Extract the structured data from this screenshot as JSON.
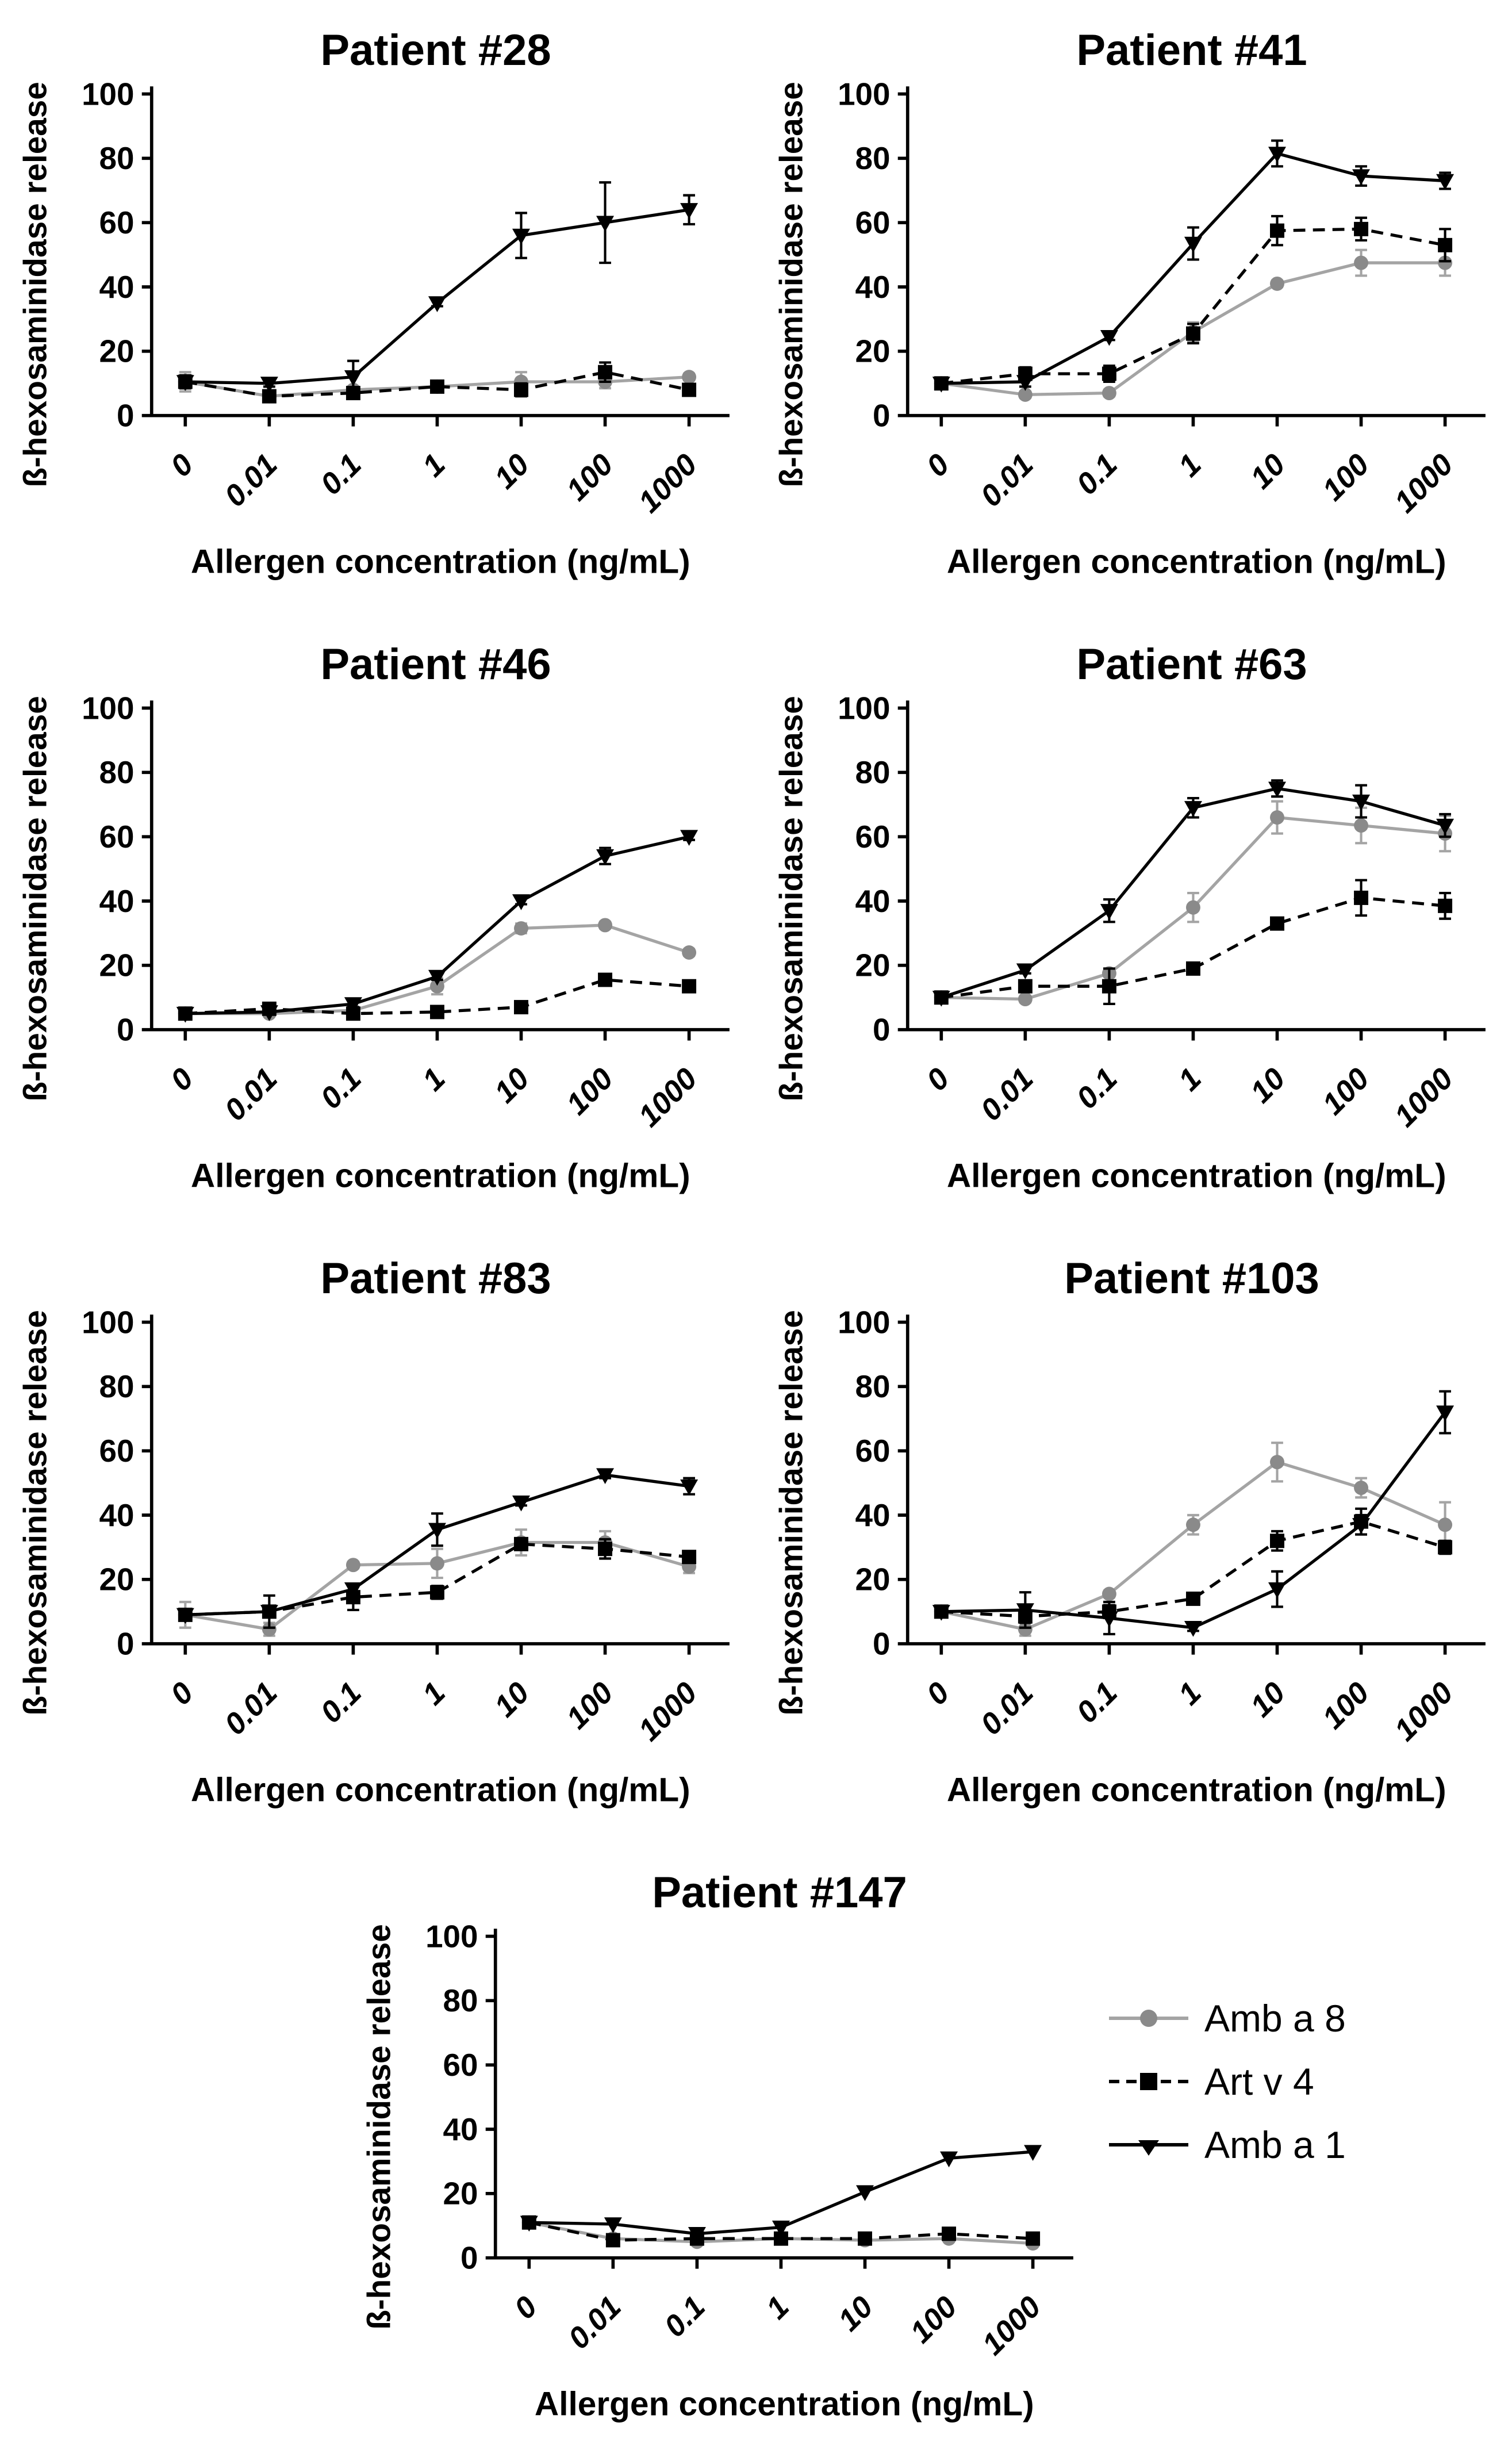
{
  "legend": {
    "items": [
      {
        "label": "Amb a 8",
        "style": "amb_a_8"
      },
      {
        "label": "Art v 4",
        "style": "art_v_4"
      },
      {
        "label": "Amb a 1",
        "style": "amb_a_1"
      }
    ]
  },
  "series_styles": {
    "amb_a_8": {
      "marker": "circle",
      "marker_color": "#8a8a8a",
      "line_color": "#a4a4a4",
      "dash": "none"
    },
    "art_v_4": {
      "marker": "square",
      "marker_color": "#000000",
      "line_color": "#000000",
      "dash": "11,7"
    },
    "amb_a_1": {
      "marker": "triangle-down",
      "marker_color": "#000000",
      "line_color": "#000000",
      "dash": "none"
    }
  },
  "chart_data": [
    {
      "type": "line",
      "title": "Patient #28",
      "xlabel": "Allergen concentration (ng/mL)",
      "ylabel": "ß-hexosaminidase release [%]",
      "categories": [
        "0",
        "0.01",
        "0.1",
        "1",
        "10",
        "100",
        "1000"
      ],
      "ylim": [
        0,
        100
      ],
      "yticks": [
        0,
        20,
        40,
        60,
        80,
        100
      ],
      "series": [
        {
          "name": "Amb a 8",
          "style": "amb_a_8",
          "values": [
            10.5,
            6,
            8,
            9,
            10.5,
            10.5,
            12
          ],
          "errors": [
            3,
            1,
            1,
            1,
            3,
            2,
            1
          ]
        },
        {
          "name": "Art v 4",
          "style": "art_v_4",
          "values": [
            10.5,
            6,
            7,
            9,
            8,
            13.5,
            8
          ],
          "errors": [
            2,
            1,
            1,
            1,
            2,
            3,
            1
          ]
        },
        {
          "name": "Amb a 1",
          "style": "amb_a_1",
          "values": [
            10.5,
            10,
            12,
            35,
            56,
            60,
            64
          ],
          "errors": [
            2,
            1,
            5,
            1,
            7,
            12.5,
            4.5
          ]
        }
      ]
    },
    {
      "type": "line",
      "title": "Patient #41",
      "xlabel": "Allergen concentration (ng/mL)",
      "ylabel": "ß-hexosaminidase release [%]",
      "categories": [
        "0",
        "0.01",
        "0.1",
        "1",
        "10",
        "100",
        "1000"
      ],
      "ylim": [
        0,
        100
      ],
      "yticks": [
        0,
        20,
        40,
        60,
        80,
        100
      ],
      "series": [
        {
          "name": "Amb a 8",
          "style": "amb_a_8",
          "values": [
            10,
            6.5,
            7,
            26,
            41,
            47.5,
            47.5
          ],
          "errors": [
            1.5,
            1,
            1,
            3,
            1,
            4,
            4
          ]
        },
        {
          "name": "Art v 4",
          "style": "art_v_4",
          "values": [
            10,
            13,
            13,
            25.5,
            57.5,
            58,
            53
          ],
          "errors": [
            1,
            2,
            2.5,
            3,
            4.5,
            3.5,
            5
          ]
        },
        {
          "name": "Amb a 1",
          "style": "amb_a_1",
          "values": [
            10,
            10.5,
            24.5,
            53.5,
            81.5,
            74.5,
            73
          ],
          "errors": [
            1,
            1.5,
            1,
            5,
            4,
            3,
            2.5
          ]
        }
      ]
    },
    {
      "type": "line",
      "title": "Patient #46",
      "xlabel": "Allergen concentration (ng/mL)",
      "ylabel": "ß-hexosaminidase release [%]",
      "categories": [
        "0",
        "0.01",
        "0.1",
        "1",
        "10",
        "100",
        "1000"
      ],
      "ylim": [
        0,
        100
      ],
      "yticks": [
        0,
        20,
        40,
        60,
        80,
        100
      ],
      "series": [
        {
          "name": "Amb a 8",
          "style": "amb_a_8",
          "values": [
            5,
            5,
            6,
            13.5,
            31.5,
            32.5,
            24
          ],
          "errors": [
            0.5,
            0.5,
            1,
            2.5,
            1.5,
            1,
            1
          ]
        },
        {
          "name": "Art v 4",
          "style": "art_v_4",
          "values": [
            5,
            6.5,
            5,
            5.5,
            7,
            15.5,
            13.5
          ],
          "errors": [
            0.5,
            0.5,
            1,
            0.5,
            0.5,
            1,
            1
          ]
        },
        {
          "name": "Amb a 1",
          "style": "amb_a_1",
          "values": [
            5,
            5.5,
            8,
            16.5,
            40,
            54,
            60
          ],
          "errors": [
            0.5,
            0.5,
            1,
            1,
            1,
            2.5,
            1
          ]
        }
      ]
    },
    {
      "type": "line",
      "title": "Patient #63",
      "xlabel": "Allergen concentration (ng/mL)",
      "ylabel": "ß-hexosaminidase release [%]",
      "categories": [
        "0",
        "0.01",
        "0.1",
        "1",
        "10",
        "100",
        "1000"
      ],
      "ylim": [
        0,
        100
      ],
      "yticks": [
        0,
        20,
        40,
        60,
        80,
        100
      ],
      "series": [
        {
          "name": "Amb a 8",
          "style": "amb_a_8",
          "values": [
            10,
            9.5,
            17.5,
            38,
            66,
            63.5,
            61
          ],
          "errors": [
            1,
            1,
            1,
            4.5,
            5,
            5.5,
            5.5
          ]
        },
        {
          "name": "Art v 4",
          "style": "art_v_4",
          "values": [
            10,
            13.5,
            13.5,
            19,
            33,
            41,
            38.5
          ],
          "errors": [
            1.5,
            1.5,
            5.5,
            1,
            1,
            5.5,
            4
          ]
        },
        {
          "name": "Amb a 1",
          "style": "amb_a_1",
          "values": [
            10,
            18.5,
            37,
            69,
            75,
            71,
            63.5
          ],
          "errors": [
            1,
            1,
            3.5,
            3,
            2.5,
            5,
            3.5
          ]
        }
      ]
    },
    {
      "type": "line",
      "title": "Patient #83",
      "xlabel": "Allergen concentration (ng/mL)",
      "ylabel": "ß-hexosaminidase release [%]",
      "categories": [
        "0",
        "0.01",
        "0.1",
        "1",
        "10",
        "100",
        "1000"
      ],
      "ylim": [
        0,
        100
      ],
      "yticks": [
        0,
        20,
        40,
        60,
        80,
        100
      ],
      "series": [
        {
          "name": "Amb a 8",
          "style": "amb_a_8",
          "values": [
            9,
            4.5,
            24.5,
            25,
            31.5,
            31.5,
            24
          ],
          "errors": [
            4,
            2,
            1,
            4.5,
            4,
            3.5,
            2
          ]
        },
        {
          "name": "Art v 4",
          "style": "art_v_4",
          "values": [
            9,
            10,
            14.5,
            16,
            31,
            29.5,
            27
          ],
          "errors": [
            1,
            5,
            4,
            2,
            1,
            3,
            1
          ]
        },
        {
          "name": "Amb a 1",
          "style": "amb_a_1",
          "values": [
            9,
            10,
            17,
            35.5,
            44,
            52.5,
            49
          ],
          "errors": [
            1,
            1,
            1.5,
            5,
            1,
            1,
            2.5
          ]
        }
      ]
    },
    {
      "type": "line",
      "title": "Patient #103",
      "xlabel": "Allergen concentration (ng/mL)",
      "ylabel": "ß-hexosaminidase release [%]",
      "categories": [
        "0",
        "0.01",
        "0.1",
        "1",
        "10",
        "100",
        "1000"
      ],
      "ylim": [
        0,
        100
      ],
      "yticks": [
        0,
        20,
        40,
        60,
        80,
        100
      ],
      "series": [
        {
          "name": "Amb a 8",
          "style": "amb_a_8",
          "values": [
            10,
            4.5,
            15.5,
            37,
            56.5,
            48.5,
            37
          ],
          "errors": [
            1,
            2,
            1,
            3,
            6,
            3,
            7
          ]
        },
        {
          "name": "Art v 4",
          "style": "art_v_4",
          "values": [
            10,
            8.5,
            10,
            14,
            32,
            38,
            30
          ],
          "errors": [
            1,
            2,
            2,
            1,
            3,
            4,
            2
          ]
        },
        {
          "name": "Amb a 1",
          "style": "amb_a_1",
          "values": [
            10,
            10.5,
            8,
            5,
            17,
            37,
            72
          ],
          "errors": [
            1,
            5.5,
            5,
            1,
            5.5,
            3,
            6.5
          ]
        }
      ]
    },
    {
      "type": "line",
      "title": "Patient #147",
      "xlabel": "Allergen concentration (ng/mL)",
      "ylabel": "ß-hexosaminidase release [%]",
      "categories": [
        "0",
        "0.01",
        "0.1",
        "1",
        "10",
        "100",
        "1000"
      ],
      "ylim": [
        0,
        100
      ],
      "yticks": [
        0,
        20,
        40,
        60,
        80,
        100
      ],
      "series": [
        {
          "name": "Amb a 8",
          "style": "amb_a_8",
          "values": [
            11,
            6,
            5,
            6,
            5.5,
            6,
            4.5
          ],
          "errors": [
            1,
            0.5,
            0.5,
            1,
            0.5,
            0.5,
            0.5
          ]
        },
        {
          "name": "Art v 4",
          "style": "art_v_4",
          "values": [
            11,
            5.5,
            6,
            6,
            6,
            7.5,
            6
          ],
          "errors": [
            0.5,
            0.5,
            0.5,
            0.5,
            0.5,
            0.5,
            0.5
          ]
        },
        {
          "name": "Amb a 1",
          "style": "amb_a_1",
          "values": [
            11,
            10.5,
            7.5,
            9.5,
            20.5,
            31,
            33
          ],
          "errors": [
            0.5,
            0.5,
            0.5,
            0.5,
            0.5,
            0.5,
            0.5
          ]
        }
      ]
    }
  ]
}
